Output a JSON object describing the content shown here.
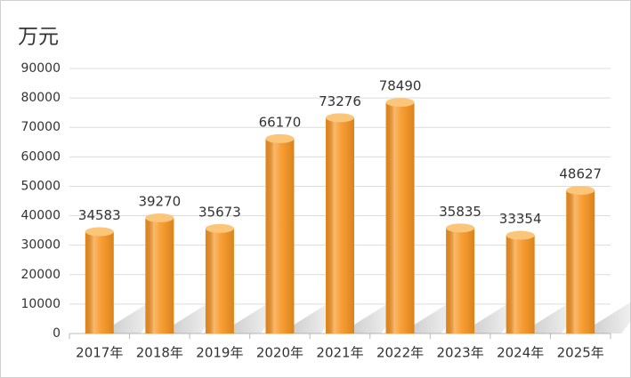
{
  "chart_data": {
    "type": "bar",
    "title": "万元",
    "categories": [
      "2017年",
      "2018年",
      "2019年",
      "2020年",
      "2021年",
      "2022年",
      "2023年",
      "2024年",
      "2025年"
    ],
    "values": [
      34583,
      39270,
      35673,
      66170,
      73276,
      78490,
      35835,
      33354,
      48627
    ],
    "color": "#f7931e",
    "ylim": [
      0,
      90000
    ],
    "yticks": [
      0,
      10000,
      20000,
      30000,
      40000,
      50000,
      60000,
      70000,
      80000,
      90000
    ],
    "grid": true
  }
}
